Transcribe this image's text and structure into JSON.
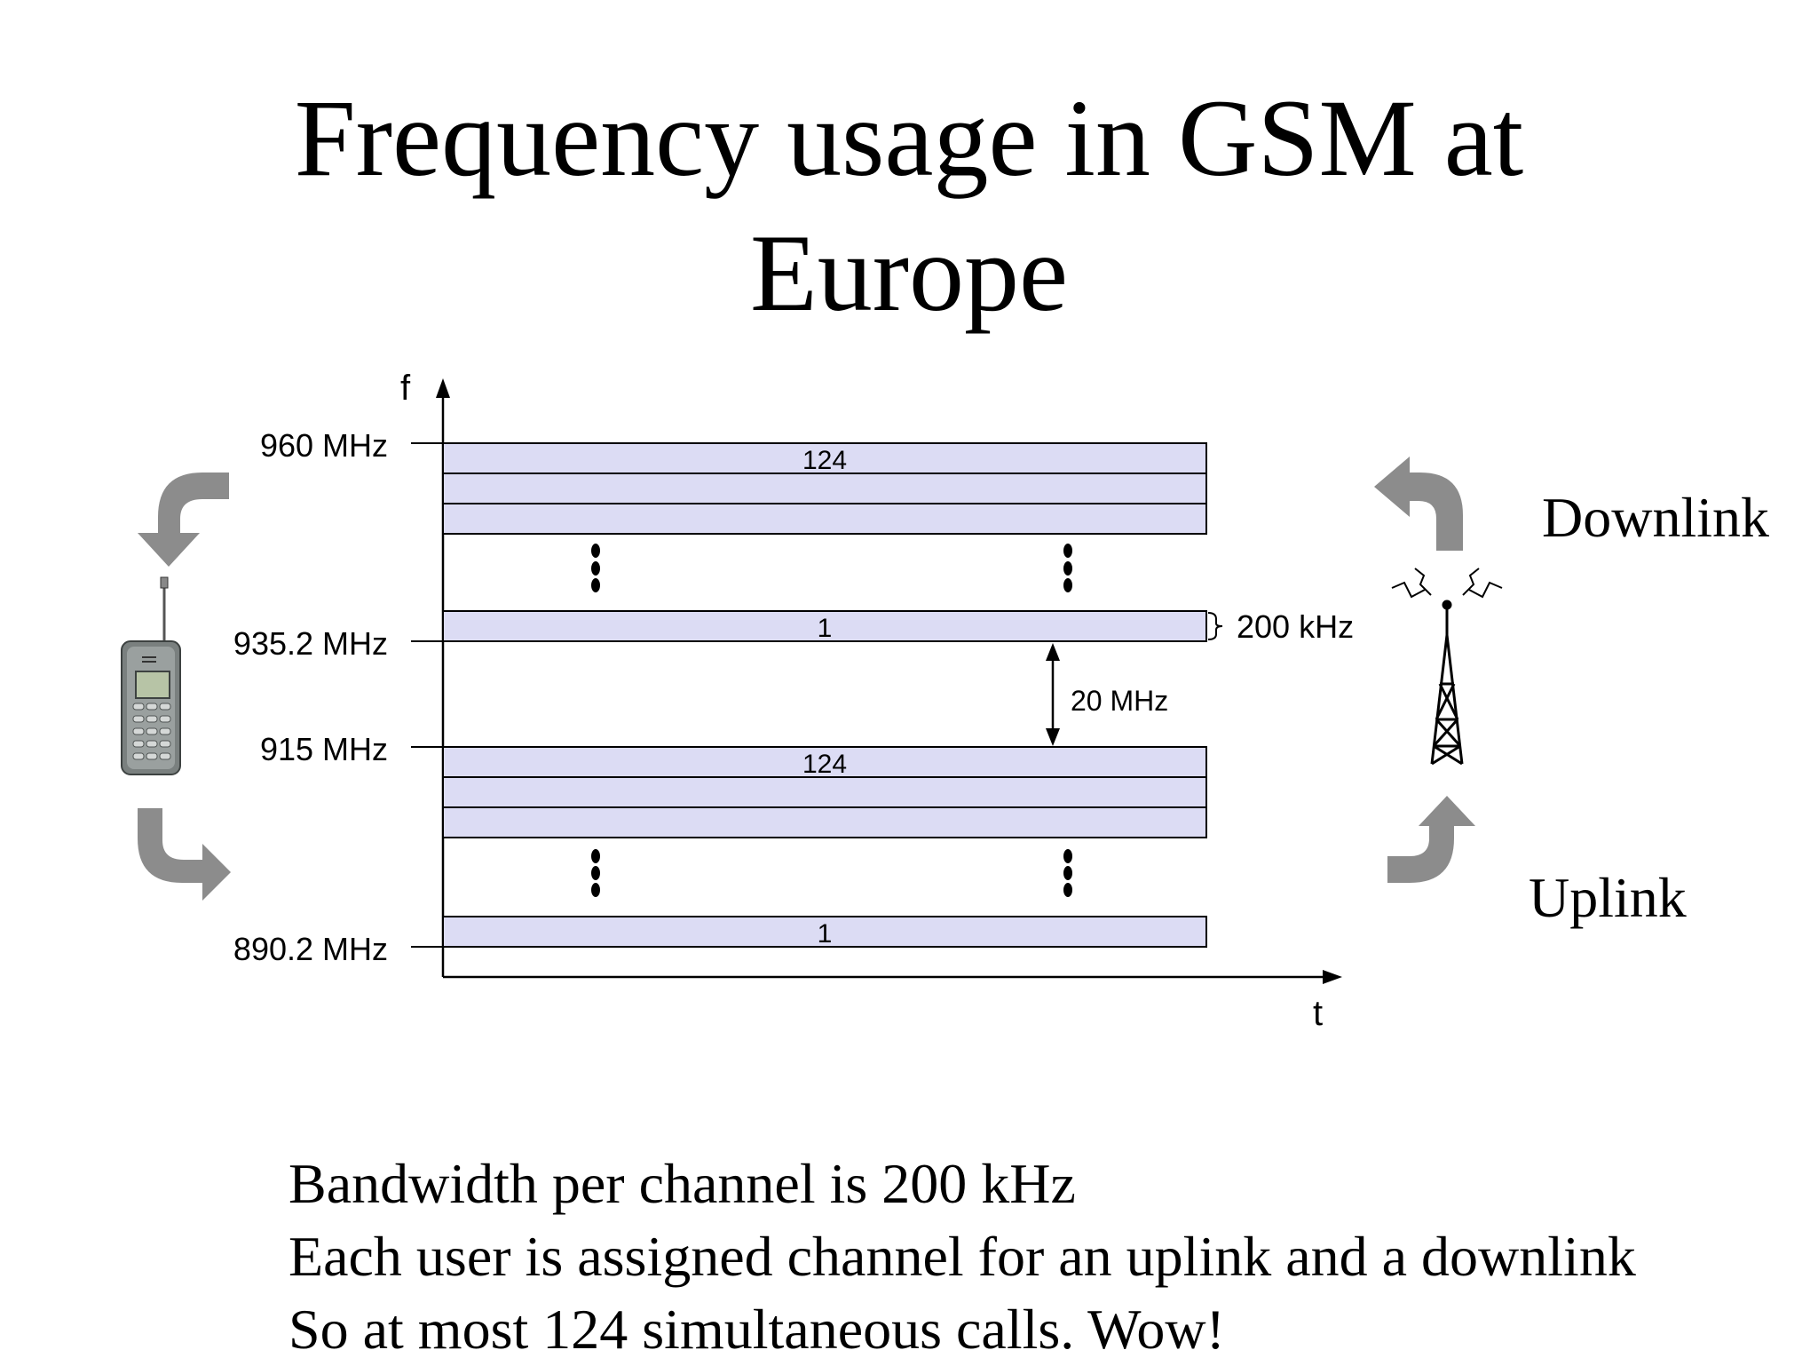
{
  "title": {
    "line1": "Frequency usage in GSM at",
    "line2": "Europe"
  },
  "axes": {
    "y_label": "f",
    "x_label": "t"
  },
  "frequency_labels": [
    "960 MHz",
    "935.2 MHz",
    "915 MHz",
    "890.2 MHz"
  ],
  "channel_labels": {
    "downlink_top": "124",
    "downlink_bottom": "1",
    "uplink_top": "124",
    "uplink_bottom": "1"
  },
  "annotations": {
    "channel_width": "200 kHz",
    "duplex_gap": "20 MHz"
  },
  "link_labels": {
    "downlink": "Downlink",
    "uplink": "Uplink"
  },
  "notes": [
    "Bandwidth per channel is 200 kHz",
    "Each user is assigned channel for an uplink and a downlink",
    "So at most 124 simultaneous calls.  Wow!"
  ],
  "colors": {
    "band_fill": "#dcdcf4",
    "arrow_gray": "#8c8c8c"
  },
  "icons": [
    "mobile-phone-icon",
    "antenna-tower-icon",
    "curved-arrow-icon"
  ]
}
